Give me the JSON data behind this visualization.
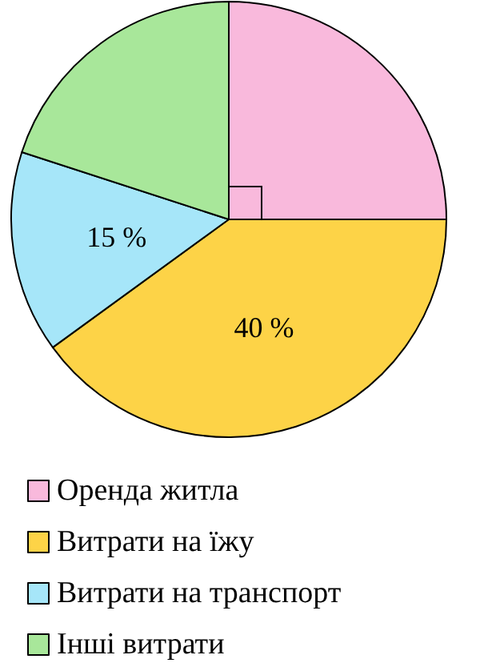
{
  "chart_data": {
    "type": "pie",
    "categories": [
      "Оренда житла",
      "Витрати на їжу",
      "Витрати на транспорт",
      "Інші витрати"
    ],
    "values": [
      25,
      40,
      15,
      20
    ],
    "colors": [
      "#f9b9dc",
      "#fdd347",
      "#a6e6f9",
      "#a8e79a"
    ],
    "value_labels": [
      null,
      "40 %",
      "15 %",
      null
    ],
    "legend": "bottom"
  }
}
